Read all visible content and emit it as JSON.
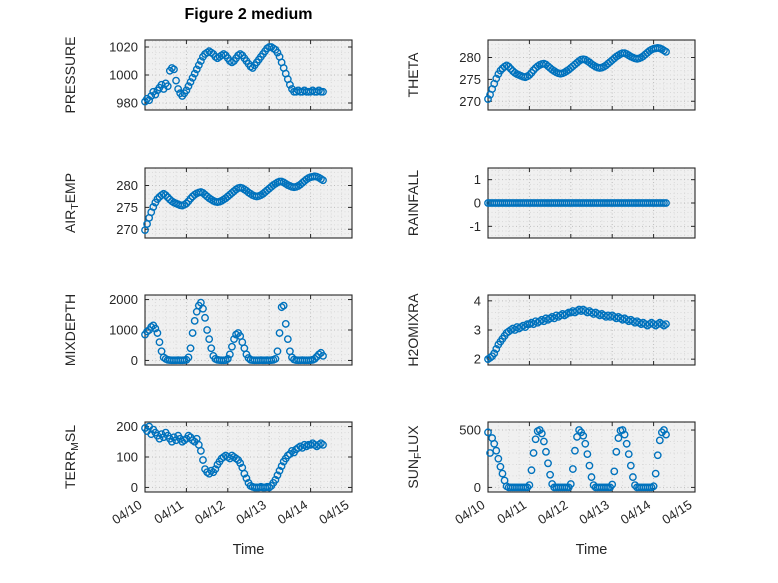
{
  "title": "Figure 2 medium",
  "marker_color": "#0072BD",
  "panel_bg": "#f0f0f0",
  "grid_major_color": "#bdbdbd",
  "grid_minor_color": "#d9d9d9",
  "axis_color": "#262626",
  "xlim": [
    0,
    5
  ],
  "xtick_values": [
    0,
    1,
    2,
    3,
    4,
    5
  ],
  "xtick_labels": [
    "04/10",
    "04/11",
    "04/12",
    "04/13",
    "04/14",
    "04/15"
  ],
  "x": [
    0,
    0.05,
    0.1,
    0.15,
    0.2,
    0.25,
    0.3,
    0.35,
    0.4,
    0.45,
    0.5,
    0.55,
    0.6,
    0.65,
    0.7,
    0.75,
    0.8,
    0.85,
    0.9,
    0.95,
    1,
    1.05,
    1.1,
    1.15,
    1.2,
    1.25,
    1.3,
    1.35,
    1.4,
    1.45,
    1.5,
    1.55,
    1.6,
    1.65,
    1.7,
    1.75,
    1.8,
    1.85,
    1.9,
    1.95,
    2,
    2.05,
    2.1,
    2.15,
    2.2,
    2.25,
    2.3,
    2.35,
    2.4,
    2.45,
    2.5,
    2.55,
    2.6,
    2.65,
    2.7,
    2.75,
    2.8,
    2.85,
    2.9,
    2.95,
    3,
    3.05,
    3.1,
    3.15,
    3.2,
    3.25,
    3.3,
    3.35,
    3.4,
    3.45,
    3.5,
    3.55,
    3.6,
    3.65,
    3.7,
    3.75,
    3.8,
    3.85,
    3.9,
    3.95,
    4,
    4.05,
    4.1,
    4.15,
    4.2,
    4.25,
    4.3
  ],
  "chart_data": [
    {
      "type": "scatter",
      "ylabel": "PRESSURE",
      "ylim": [
        975,
        1025
      ],
      "yticks": [
        980,
        1000,
        1020
      ],
      "y": [
        981,
        983,
        982,
        985,
        988,
        986,
        989,
        991,
        993,
        990,
        994,
        992,
        1003,
        1005,
        1004,
        996,
        990,
        987,
        985,
        987,
        989,
        992,
        995,
        998,
        1001,
        1004,
        1007,
        1010,
        1013,
        1015,
        1016,
        1017,
        1016,
        1015,
        1013,
        1012,
        1013,
        1014,
        1015,
        1014,
        1012,
        1010,
        1009,
        1010,
        1012,
        1014,
        1015,
        1014,
        1012,
        1010,
        1008,
        1006,
        1005,
        1007,
        1009,
        1011,
        1013,
        1015,
        1017,
        1019,
        1020,
        1020,
        1019,
        1018,
        1016,
        1013,
        1009,
        1005,
        1001,
        997,
        993,
        990,
        988,
        988,
        989,
        988,
        988,
        989,
        988,
        988,
        988,
        989,
        988,
        988,
        989,
        988,
        988
      ]
    },
    {
      "type": "scatter",
      "ylabel": "THETA",
      "ylim": [
        268,
        284
      ],
      "yticks": [
        270,
        275,
        280
      ],
      "y": [
        270.5,
        271.5,
        272.8,
        274,
        275.2,
        276.2,
        277,
        277.5,
        277.9,
        278.2,
        277.9,
        277.4,
        276.9,
        276.5,
        276.2,
        276,
        275.8,
        275.6,
        275.5,
        275.7,
        276,
        276.5,
        277.1,
        277.6,
        278,
        278.3,
        278.5,
        278.6,
        278.4,
        278,
        277.6,
        277.2,
        276.9,
        276.6,
        276.4,
        276.3,
        276.4,
        276.6,
        276.9,
        277.2,
        277.6,
        278,
        278.4,
        278.8,
        279.2,
        279.5,
        279.6,
        279.5,
        279.2,
        278.9,
        278.5,
        278.2,
        277.9,
        277.7,
        277.6,
        277.7,
        277.9,
        278.2,
        278.6,
        279,
        279.4,
        279.8,
        280.2,
        280.5,
        280.8,
        281,
        281,
        280.8,
        280.5,
        280.2,
        280,
        279.8,
        279.7,
        279.8,
        280,
        280.3,
        280.7,
        281.1,
        281.5,
        281.8,
        282,
        282.1,
        282.2,
        282.1,
        281.9,
        281.6,
        281.3
      ]
    },
    {
      "type": "scatter",
      "ylabel": "AIR_TEMP",
      "ylim": [
        268,
        284
      ],
      "yticks": [
        270,
        275,
        280
      ],
      "y": [
        269.8,
        271.2,
        272.6,
        273.9,
        275.1,
        276.1,
        276.9,
        277.4,
        277.8,
        278.1,
        277.8,
        277.3,
        276.8,
        276.4,
        276.1,
        275.9,
        275.7,
        275.5,
        275.4,
        275.6,
        275.9,
        276.4,
        277,
        277.5,
        277.9,
        278.2,
        278.4,
        278.5,
        278.3,
        277.9,
        277.5,
        277.1,
        276.8,
        276.5,
        276.3,
        276.2,
        276.3,
        276.5,
        276.8,
        277.1,
        277.5,
        277.9,
        278.3,
        278.7,
        279.1,
        279.4,
        279.5,
        279.4,
        279.1,
        278.8,
        278.4,
        278.1,
        277.8,
        277.6,
        277.5,
        277.6,
        277.8,
        278.1,
        278.5,
        278.9,
        279.3,
        279.7,
        280.1,
        280.4,
        280.7,
        280.9,
        280.9,
        280.7,
        280.4,
        280.1,
        279.9,
        279.7,
        279.6,
        279.7,
        279.9,
        280.2,
        280.6,
        281,
        281.4,
        281.7,
        281.9,
        282,
        282.1,
        282,
        281.8,
        281.5,
        281.2
      ]
    },
    {
      "type": "scatter",
      "ylabel": "RAINFALL",
      "ylim": [
        -1.5,
        1.5
      ],
      "yticks": [
        -1,
        0,
        1
      ],
      "y": [
        0,
        0,
        0,
        0,
        0,
        0,
        0,
        0,
        0,
        0,
        0,
        0,
        0,
        0,
        0,
        0,
        0,
        0,
        0,
        0,
        0,
        0,
        0,
        0,
        0,
        0,
        0,
        0,
        0,
        0,
        0,
        0,
        0,
        0,
        0,
        0,
        0,
        0,
        0,
        0,
        0,
        0,
        0,
        0,
        0,
        0,
        0,
        0,
        0,
        0,
        0,
        0,
        0,
        0,
        0,
        0,
        0,
        0,
        0,
        0,
        0,
        0,
        0,
        0,
        0,
        0,
        0,
        0,
        0,
        0,
        0,
        0,
        0,
        0,
        0,
        0,
        0,
        0,
        0,
        0,
        0,
        0,
        0,
        0,
        0,
        0,
        0
      ]
    },
    {
      "type": "scatter",
      "ylabel": "MIXDEPTH",
      "ylim": [
        -150,
        2150
      ],
      "yticks": [
        0,
        1000,
        2000
      ],
      "y": [
        850,
        950,
        1000,
        1100,
        1150,
        1050,
        900,
        600,
        300,
        100,
        50,
        20,
        10,
        5,
        5,
        5,
        10,
        5,
        5,
        10,
        20,
        100,
        400,
        900,
        1300,
        1600,
        1800,
        1900,
        1700,
        1400,
        1000,
        700,
        400,
        150,
        50,
        20,
        10,
        5,
        5,
        10,
        50,
        200,
        450,
        700,
        850,
        900,
        800,
        600,
        400,
        200,
        80,
        20,
        10,
        5,
        5,
        5,
        10,
        5,
        5,
        10,
        5,
        10,
        20,
        50,
        300,
        900,
        1750,
        1800,
        1200,
        700,
        300,
        100,
        30,
        10,
        5,
        5,
        10,
        5,
        5,
        5,
        10,
        20,
        50,
        120,
        200,
        250,
        150
      ]
    },
    {
      "type": "scatter",
      "ylabel": "H2OMIXRA",
      "ylim": [
        1.8,
        4.2
      ],
      "yticks": [
        2,
        3,
        4
      ],
      "y": [
        2,
        2.05,
        2.1,
        2.2,
        2.35,
        2.5,
        2.6,
        2.7,
        2.8,
        2.9,
        2.95,
        3,
        3.05,
        3,
        3.1,
        3.05,
        3.1,
        3.15,
        3.1,
        3.2,
        3.2,
        3.25,
        3.2,
        3.3,
        3.25,
        3.3,
        3.35,
        3.3,
        3.4,
        3.35,
        3.4,
        3.45,
        3.4,
        3.5,
        3.45,
        3.5,
        3.55,
        3.5,
        3.55,
        3.6,
        3.6,
        3.65,
        3.6,
        3.65,
        3.7,
        3.65,
        3.7,
        3.65,
        3.6,
        3.65,
        3.6,
        3.55,
        3.6,
        3.55,
        3.5,
        3.55,
        3.5,
        3.45,
        3.5,
        3.45,
        3.5,
        3.45,
        3.4,
        3.45,
        3.4,
        3.35,
        3.4,
        3.35,
        3.3,
        3.35,
        3.3,
        3.25,
        3.3,
        3.25,
        3.2,
        3.25,
        3.2,
        3.15,
        3.2,
        3.25,
        3.2,
        3.15,
        3.2,
        3.25,
        3.2,
        3.15,
        3.2
      ]
    },
    {
      "type": "scatter",
      "ylabel": "TERR_MSL",
      "ylim": [
        -15,
        215
      ],
      "yticks": [
        0,
        100,
        200
      ],
      "xlabel": "Time",
      "y": [
        195,
        185,
        200,
        175,
        190,
        180,
        170,
        160,
        175,
        165,
        180,
        170,
        160,
        150,
        165,
        155,
        170,
        160,
        150,
        155,
        160,
        170,
        165,
        155,
        150,
        160,
        140,
        120,
        90,
        60,
        50,
        45,
        55,
        50,
        60,
        75,
        85,
        95,
        100,
        105,
        100,
        95,
        105,
        100,
        95,
        90,
        80,
        65,
        45,
        30,
        15,
        5,
        2,
        0,
        0,
        0,
        2,
        0,
        0,
        2,
        0,
        5,
        15,
        25,
        40,
        55,
        70,
        85,
        95,
        105,
        110,
        120,
        115,
        125,
        130,
        135,
        130,
        140,
        135,
        140,
        140,
        145,
        140,
        135,
        140,
        145,
        140
      ]
    },
    {
      "type": "scatter",
      "ylabel": "SUN_FLUX",
      "ylim": [
        -40,
        570
      ],
      "yticks": [
        0,
        500
      ],
      "xlabel": "Time",
      "y": [
        480,
        300,
        430,
        380,
        320,
        250,
        180,
        120,
        60,
        10,
        0,
        0,
        0,
        0,
        0,
        0,
        0,
        0,
        0,
        0,
        20,
        150,
        300,
        420,
        490,
        500,
        470,
        400,
        310,
        210,
        110,
        30,
        0,
        0,
        0,
        0,
        0,
        0,
        0,
        0,
        30,
        160,
        320,
        440,
        500,
        480,
        450,
        380,
        290,
        190,
        90,
        20,
        0,
        0,
        0,
        0,
        0,
        0,
        0,
        0,
        25,
        140,
        310,
        430,
        495,
        500,
        460,
        380,
        290,
        190,
        90,
        20,
        0,
        0,
        0,
        0,
        0,
        0,
        0,
        0,
        10,
        120,
        280,
        410,
        480,
        500,
        460
      ]
    }
  ]
}
